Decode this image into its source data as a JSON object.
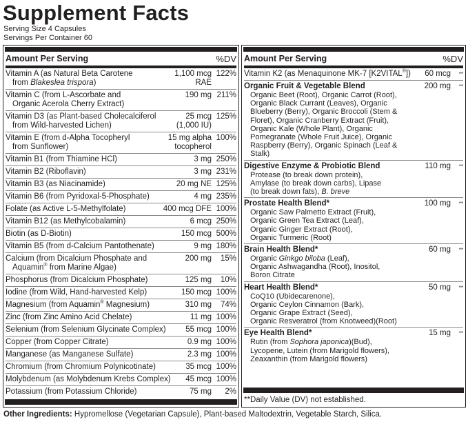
{
  "title": "Supplement Facts",
  "serving_size": "Serving Size 4 Capsules",
  "servings_per_container": "Servings Per Container 60",
  "header": {
    "amount": "Amount Per Serving",
    "dv": "%DV"
  },
  "left_rows": [
    {
      "name": [
        {
          "t": "Vitamin A (as Natural Beta Carotene"
        },
        {
          "t": "from ",
          "br": true
        },
        {
          "t": "Blakeslea trispora",
          "i": true
        },
        {
          "t": ")"
        }
      ],
      "amount": "1,100 mcg RAE",
      "dv": "122%"
    },
    {
      "name": [
        {
          "t": "Vitamin C (from L-Ascorbate and"
        },
        {
          "t": "Organic Acerola Cherry Extract)",
          "br": true
        }
      ],
      "amount": "190 mg",
      "dv": "211%"
    },
    {
      "name": [
        {
          "t": "Vitamin D3 (as Plant-based Cholecalciferol"
        },
        {
          "t": "from Wild-harvested Lichen)",
          "br": true
        }
      ],
      "amount": "25 mcg (1,000 IU)",
      "dv": "125%"
    },
    {
      "name": [
        {
          "t": "Vitamin E (from d-Alpha Tocopheryl"
        },
        {
          "t": "from Sunflower)",
          "br": true
        }
      ],
      "amount": "15 mg alpha tocopherol",
      "dv": "100%"
    },
    {
      "name": [
        {
          "t": "Vitamin B1 (from Thiamine HCl)"
        }
      ],
      "amount": "3 mg",
      "dv": "250%"
    },
    {
      "name": [
        {
          "t": "Vitamin B2 (Riboflavin)"
        }
      ],
      "amount": "3 mg",
      "dv": "231%"
    },
    {
      "name": [
        {
          "t": "Vitamin B3 (as Niacinamide)"
        }
      ],
      "amount": "20 mg NE",
      "dv": "125%"
    },
    {
      "name": [
        {
          "t": "Vitamin B6 (from Pyridoxal-5-Phosphate)"
        }
      ],
      "amount": "4 mg",
      "dv": "235%"
    },
    {
      "name": [
        {
          "t": "Folate (as Active L-5-Methylfolate)"
        }
      ],
      "amount": "400 mcg DFE",
      "dv": "100%"
    },
    {
      "name": [
        {
          "t": "Vitamin B12 (as Methylcobalamin)"
        }
      ],
      "amount": "6 mcg",
      "dv": "250%"
    },
    {
      "name": [
        {
          "t": "Biotin (as D-Biotin)"
        }
      ],
      "amount": "150 mcg",
      "dv": "500%"
    },
    {
      "name": [
        {
          "t": "Vitamin B5 (from d-Calcium Pantothenate)"
        }
      ],
      "amount": "9 mg",
      "dv": "180%"
    },
    {
      "name": [
        {
          "t": "Calcium (from Dicalcium Phosphate and"
        },
        {
          "t": "Aquamin",
          "br": true
        },
        {
          "t": "®",
          "sup": true
        },
        {
          "t": " from Marine Algae)"
        }
      ],
      "amount": "200 mg",
      "dv": "15%"
    },
    {
      "name": [
        {
          "t": "Phosphorus (from Dicalcium Phosphate)"
        }
      ],
      "amount": "125 mg",
      "dv": "10%"
    },
    {
      "name": [
        {
          "t": "Iodine (from Wild, Hand-harvested Kelp)"
        }
      ],
      "amount": "150 mcg",
      "dv": "100%"
    },
    {
      "name": [
        {
          "t": "Magnesium (from Aquamin"
        },
        {
          "t": "®",
          "sup": true
        },
        {
          "t": " Magnesium)"
        }
      ],
      "amount": "310 mg",
      "dv": "74%"
    },
    {
      "name": [
        {
          "t": "Zinc (from Zinc Amino Acid Chelate)"
        }
      ],
      "amount": "11 mg",
      "dv": "100%"
    },
    {
      "name": [
        {
          "t": "Selenium (from Selenium Glycinate Complex)"
        }
      ],
      "amount": "55 mcg",
      "dv": "100%"
    },
    {
      "name": [
        {
          "t": "Copper (from Copper Citrate)"
        }
      ],
      "amount": "0.9 mg",
      "dv": "100%"
    },
    {
      "name": [
        {
          "t": "Manganese (as Manganese Sulfate)"
        }
      ],
      "amount": "2.3 mg",
      "dv": "100%"
    },
    {
      "name": [
        {
          "t": "Chromium (from Chromium Polynicotinate)"
        }
      ],
      "amount": "35 mcg",
      "dv": "100%"
    },
    {
      "name": [
        {
          "t": "Molybdenum (as Molybdenum Krebs Complex)"
        }
      ],
      "amount": "45 mcg",
      "dv": "100%"
    },
    {
      "name": [
        {
          "t": "Potassium (from Potassium Chloride)"
        }
      ],
      "amount": "75 mg",
      "dv": "2%"
    }
  ],
  "right_rows": [
    {
      "name": [
        {
          "t": "Vitamin K2 (as Menaquinone MK-7 [K2VITAL"
        },
        {
          "t": "®",
          "sup": true
        },
        {
          "t": "])"
        }
      ],
      "amount": "60 mcg",
      "dv": "**"
    },
    {
      "title": "Organic Fruit & Vegetable Blend",
      "sub": [
        {
          "t": "Organic Beet (Root), Organic Carrot (Root), Organic Black Currant (Leaves), Organic Blueberry (Berry), Organic Broccoli (Stem & Floret), Organic Cranberry Extract (Fruit), Organic Kale (Whole Plant), Organic Pomegranate (Whole Fruit Juice), Organic Raspberry (Berry), Organic Spinach (Leaf & Stalk)"
        }
      ],
      "amount": "200 mg",
      "dv": "**"
    },
    {
      "title": "Digestive Enzyme & Probiotic Blend",
      "sub": [
        {
          "t": "Protease (to break down protein),"
        },
        {
          "t": "Amylase (to break down carbs), Lipase",
          "br": true
        },
        {
          "t": "(to break down fats), ",
          "br": true
        },
        {
          "t": "B. breve",
          "i": true
        }
      ],
      "amount": "110 mg",
      "dv": "**"
    },
    {
      "title": "Prostate Health Blend*",
      "sub": [
        {
          "t": "Organic Saw Palmetto Extract (Fruit),"
        },
        {
          "t": "Organic Green Tea Extract (Leaf),",
          "br": true
        },
        {
          "t": "Organic Ginger Extract (Root),",
          "br": true
        },
        {
          "t": "Organic Turmeric (Root)",
          "br": true
        }
      ],
      "amount": "100 mg",
      "dv": "**"
    },
    {
      "title": "Brain Health Blend*",
      "sub": [
        {
          "t": "Organic "
        },
        {
          "t": "Ginkgo biloba",
          "i": true
        },
        {
          "t": " (Leaf),"
        },
        {
          "t": "Organic Ashwagandha (Root), Inositol,",
          "br": true
        },
        {
          "t": "Boron Citrate",
          "br": true
        }
      ],
      "amount": "60 mg",
      "dv": "**"
    },
    {
      "title": "Heart Health Blend*",
      "sub": [
        {
          "t": "CoQ10 (Ubidecarenone),"
        },
        {
          "t": "Organic Ceylon Cinnamon (Bark),",
          "br": true
        },
        {
          "t": "Organic Grape Extract (Seed),",
          "br": true
        },
        {
          "t": "Organic Resveratrol (from Knotweed)(Root)",
          "br": true
        }
      ],
      "amount": "50 mg",
      "dv": "**"
    },
    {
      "title": "Eye Health Blend*",
      "sub": [
        {
          "t": "Rutin (from "
        },
        {
          "t": "Sophora japonica",
          "i": true
        },
        {
          "t": ")(Bud),"
        },
        {
          "t": "Lycopene, Lutein (from Marigold flowers),",
          "br": true
        },
        {
          "t": "Zeaxanthin (from Marigold flowers)",
          "br": true
        }
      ],
      "amount": "15 mg",
      "dv": "**"
    }
  ],
  "footnote": "**Daily Value (DV) not established.",
  "other_ingredients": {
    "label": "Other Ingredients:",
    "text": " Hypromellose (Vegetarian Capsule), Plant-based Maltodextrin, Vegetable Starch, Silica."
  }
}
